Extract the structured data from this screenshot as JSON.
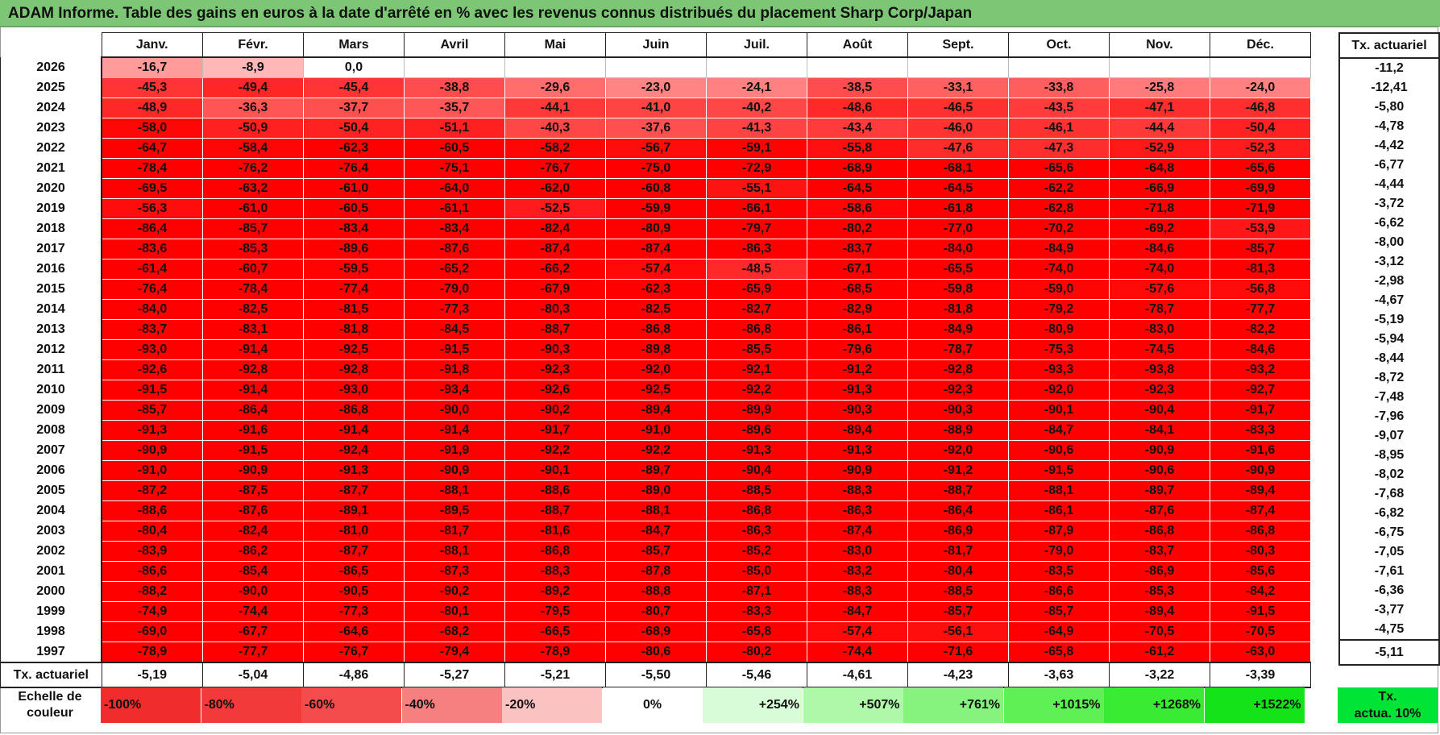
{
  "title": "ADAM Informe. Table des gains en euros à la date d'arrêté en % avec les revenus connus distribués du placement Sharp Corp/Japan",
  "months": [
    "Janv.",
    "Févr.",
    "Mars",
    "Avril",
    "Mai",
    "Juin",
    "Juil.",
    "Août",
    "Sept.",
    "Oct.",
    "Nov.",
    "Déc."
  ],
  "side_header": "Tx. actuariel",
  "rows": [
    {
      "year": "2026",
      "values": [
        "-16,7",
        "-8,9",
        "0,0",
        "",
        "",
        "",
        "",
        "",
        "",
        "",
        "",
        ""
      ],
      "tx": "-11,2"
    },
    {
      "year": "2025",
      "values": [
        "-45,3",
        "-49,4",
        "-45,4",
        "-38,8",
        "-29,6",
        "-23,0",
        "-24,1",
        "-38,5",
        "-33,1",
        "-33,8",
        "-25,8",
        "-24,0"
      ],
      "tx": "-12,41"
    },
    {
      "year": "2024",
      "values": [
        "-48,9",
        "-36,3",
        "-37,7",
        "-35,7",
        "-44,1",
        "-41,0",
        "-40,2",
        "-48,6",
        "-46,5",
        "-43,5",
        "-47,1",
        "-46,8"
      ],
      "tx": "-5,80"
    },
    {
      "year": "2023",
      "values": [
        "-58,0",
        "-50,9",
        "-50,4",
        "-51,1",
        "-40,3",
        "-37,6",
        "-41,3",
        "-43,4",
        "-46,0",
        "-46,1",
        "-44,4",
        "-50,4"
      ],
      "tx": "-4,78"
    },
    {
      "year": "2022",
      "values": [
        "-64,7",
        "-58,4",
        "-62,3",
        "-60,5",
        "-58,2",
        "-56,7",
        "-59,1",
        "-55,8",
        "-47,6",
        "-47,3",
        "-52,9",
        "-52,3"
      ],
      "tx": "-4,42"
    },
    {
      "year": "2021",
      "values": [
        "-78,4",
        "-76,2",
        "-76,4",
        "-75,1",
        "-76,7",
        "-75,0",
        "-72,9",
        "-68,9",
        "-68,1",
        "-65,6",
        "-64,8",
        "-65,6"
      ],
      "tx": "-6,77"
    },
    {
      "year": "2020",
      "values": [
        "-69,5",
        "-63,2",
        "-61,0",
        "-64,0",
        "-62,0",
        "-60,8",
        "-55,1",
        "-64,5",
        "-64,5",
        "-62,2",
        "-66,9",
        "-69,9"
      ],
      "tx": "-4,44"
    },
    {
      "year": "2019",
      "values": [
        "-56,3",
        "-61,0",
        "-60,5",
        "-61,1",
        "-52,5",
        "-59,9",
        "-66,1",
        "-58,6",
        "-61,8",
        "-62,8",
        "-71,8",
        "-71,9"
      ],
      "tx": "-3,72"
    },
    {
      "year": "2018",
      "values": [
        "-86,4",
        "-85,7",
        "-83,4",
        "-83,4",
        "-82,4",
        "-80,9",
        "-79,7",
        "-80,2",
        "-77,0",
        "-70,2",
        "-69,2",
        "-53,9"
      ],
      "tx": "-6,62"
    },
    {
      "year": "2017",
      "values": [
        "-83,6",
        "-85,3",
        "-89,6",
        "-87,6",
        "-87,4",
        "-87,4",
        "-86,3",
        "-83,7",
        "-84,0",
        "-84,9",
        "-84,6",
        "-85,7"
      ],
      "tx": "-8,00"
    },
    {
      "year": "2016",
      "values": [
        "-61,4",
        "-60,7",
        "-59,5",
        "-65,2",
        "-66,2",
        "-57,4",
        "-48,5",
        "-67,1",
        "-65,5",
        "-74,0",
        "-74,0",
        "-81,3"
      ],
      "tx": "-3,12"
    },
    {
      "year": "2015",
      "values": [
        "-76,4",
        "-78,4",
        "-77,4",
        "-79,0",
        "-67,9",
        "-62,3",
        "-65,9",
        "-68,5",
        "-59,8",
        "-59,0",
        "-57,6",
        "-56,8"
      ],
      "tx": "-2,98"
    },
    {
      "year": "2014",
      "values": [
        "-84,0",
        "-82,5",
        "-81,5",
        "-77,3",
        "-80,3",
        "-82,5",
        "-82,7",
        "-82,9",
        "-81,8",
        "-79,2",
        "-78,7",
        "-77,7"
      ],
      "tx": "-4,67"
    },
    {
      "year": "2013",
      "values": [
        "-83,7",
        "-83,1",
        "-81,8",
        "-84,5",
        "-88,7",
        "-86,8",
        "-86,8",
        "-86,1",
        "-84,9",
        "-80,9",
        "-83,0",
        "-82,2"
      ],
      "tx": "-5,19"
    },
    {
      "year": "2012",
      "values": [
        "-93,0",
        "-91,4",
        "-92,5",
        "-91,5",
        "-90,3",
        "-89,8",
        "-85,5",
        "-79,6",
        "-78,7",
        "-75,3",
        "-74,5",
        "-84,6"
      ],
      "tx": "-5,94"
    },
    {
      "year": "2011",
      "values": [
        "-92,6",
        "-92,8",
        "-92,8",
        "-91,8",
        "-92,3",
        "-92,0",
        "-92,1",
        "-91,2",
        "-92,8",
        "-93,3",
        "-93,8",
        "-93,2"
      ],
      "tx": "-8,44"
    },
    {
      "year": "2010",
      "values": [
        "-91,5",
        "-91,4",
        "-93,0",
        "-93,4",
        "-92,6",
        "-92,5",
        "-92,2",
        "-91,3",
        "-92,3",
        "-92,0",
        "-92,3",
        "-92,7"
      ],
      "tx": "-8,72"
    },
    {
      "year": "2009",
      "values": [
        "-85,7",
        "-86,4",
        "-86,8",
        "-90,0",
        "-90,2",
        "-89,4",
        "-89,9",
        "-90,3",
        "-90,3",
        "-90,1",
        "-90,4",
        "-91,7"
      ],
      "tx": "-7,48"
    },
    {
      "year": "2008",
      "values": [
        "-91,3",
        "-91,6",
        "-91,4",
        "-91,4",
        "-91,7",
        "-91,0",
        "-89,6",
        "-89,4",
        "-88,9",
        "-84,7",
        "-84,1",
        "-83,3"
      ],
      "tx": "-7,96"
    },
    {
      "year": "2007",
      "values": [
        "-90,9",
        "-91,5",
        "-92,4",
        "-91,9",
        "-92,2",
        "-92,2",
        "-91,3",
        "-91,3",
        "-92,0",
        "-90,6",
        "-90,9",
        "-91,6"
      ],
      "tx": "-9,07"
    },
    {
      "year": "2006",
      "values": [
        "-91,0",
        "-90,9",
        "-91,3",
        "-90,9",
        "-90,1",
        "-89,7",
        "-90,4",
        "-90,9",
        "-91,2",
        "-91,5",
        "-90,6",
        "-90,9"
      ],
      "tx": "-8,95"
    },
    {
      "year": "2005",
      "values": [
        "-87,2",
        "-87,5",
        "-87,7",
        "-88,1",
        "-88,6",
        "-89,0",
        "-88,5",
        "-88,3",
        "-88,7",
        "-88,1",
        "-89,7",
        "-89,4"
      ],
      "tx": "-8,02"
    },
    {
      "year": "2004",
      "values": [
        "-88,6",
        "-87,6",
        "-89,1",
        "-89,5",
        "-88,7",
        "-88,1",
        "-86,8",
        "-86,3",
        "-86,4",
        "-86,1",
        "-87,6",
        "-87,4"
      ],
      "tx": "-7,68"
    },
    {
      "year": "2003",
      "values": [
        "-80,4",
        "-82,4",
        "-81,0",
        "-81,7",
        "-81,6",
        "-84,7",
        "-86,3",
        "-87,4",
        "-86,9",
        "-87,9",
        "-86,8",
        "-86,8"
      ],
      "tx": "-6,82"
    },
    {
      "year": "2002",
      "values": [
        "-83,9",
        "-86,2",
        "-87,7",
        "-88,1",
        "-86,8",
        "-85,7",
        "-85,2",
        "-83,0",
        "-81,7",
        "-79,0",
        "-83,7",
        "-80,3"
      ],
      "tx": "-6,75"
    },
    {
      "year": "2001",
      "values": [
        "-86,6",
        "-85,4",
        "-86,5",
        "-87,3",
        "-88,3",
        "-87,8",
        "-85,0",
        "-83,2",
        "-80,4",
        "-83,5",
        "-86,9",
        "-85,6"
      ],
      "tx": "-7,05"
    },
    {
      "year": "2000",
      "values": [
        "-88,2",
        "-90,0",
        "-90,5",
        "-90,2",
        "-89,2",
        "-88,8",
        "-87,1",
        "-88,3",
        "-88,5",
        "-86,6",
        "-85,3",
        "-84,2"
      ],
      "tx": "-7,61"
    },
    {
      "year": "1999",
      "values": [
        "-74,9",
        "-74,4",
        "-77,3",
        "-80,1",
        "-79,5",
        "-80,7",
        "-83,3",
        "-84,7",
        "-85,7",
        "-85,7",
        "-89,4",
        "-91,5"
      ],
      "tx": "-6,36"
    },
    {
      "year": "1998",
      "values": [
        "-69,0",
        "-67,7",
        "-64,6",
        "-68,2",
        "-66,5",
        "-68,9",
        "-65,8",
        "-57,4",
        "-56,1",
        "-64,9",
        "-70,5",
        "-70,5"
      ],
      "tx": "-3,77"
    },
    {
      "year": "1997",
      "values": [
        "-78,9",
        "-77,7",
        "-76,7",
        "-79,4",
        "-78,9",
        "-80,6",
        "-80,2",
        "-74,4",
        "-71,6",
        "-65,8",
        "-61,2",
        "-63,0"
      ],
      "tx": "-4,75"
    }
  ],
  "total_row": {
    "label": "Tx. actuariel",
    "values": [
      "-5,19",
      "-5,04",
      "-4,86",
      "-5,27",
      "-5,21",
      "-5,50",
      "-5,46",
      "-4,61",
      "-4,23",
      "-3,63",
      "-3,22",
      "-3,39"
    ],
    "tx": "-5,11"
  },
  "legend": {
    "label": "Echelle de couleur",
    "swatches": [
      {
        "text": "-100%",
        "color": "#f02c2c",
        "kind": "neg"
      },
      {
        "text": "-80%",
        "color": "#f23a3a",
        "kind": "neg"
      },
      {
        "text": "-60%",
        "color": "#f44c4c",
        "kind": "neg"
      },
      {
        "text": "-40%",
        "color": "#f68080",
        "kind": "neg"
      },
      {
        "text": "-20%",
        "color": "#fbc2c2",
        "kind": "neg"
      },
      {
        "text": "0%",
        "color": "#ffffff",
        "kind": "mid"
      },
      {
        "text": "+254%",
        "color": "#d8fbd8",
        "kind": "pos"
      },
      {
        "text": "+507%",
        "color": "#aff8a9",
        "kind": "pos"
      },
      {
        "text": "+761%",
        "color": "#86f37f",
        "kind": "pos"
      },
      {
        "text": "+1015%",
        "color": "#5ef055",
        "kind": "pos"
      },
      {
        "text": "+1268%",
        "color": "#3aeb33",
        "kind": "pos"
      },
      {
        "text": "+1522%",
        "color": "#14e31a",
        "kind": "pos"
      }
    ],
    "actua_line1": "Tx.",
    "actua_line2": "actua. 10%",
    "actua_color": "#00e436"
  }
}
